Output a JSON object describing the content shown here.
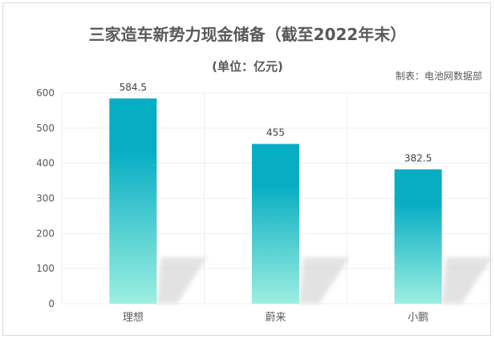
{
  "chart_data": {
    "type": "bar",
    "title": "三家造车新势力现金储备（截至2022年末）",
    "subtitle": "(单位：亿元)",
    "source_note": "制表：电池网数据部",
    "categories": [
      "理想",
      "蔚来",
      "小鹏"
    ],
    "values": [
      584.5,
      455,
      382.5
    ],
    "data_labels": [
      "584.5",
      "455",
      "382.5"
    ],
    "ylim": [
      0,
      600
    ],
    "yticks": [
      0,
      100,
      200,
      300,
      400,
      500,
      600
    ],
    "grid": true,
    "legend": "none",
    "colors": {
      "bar_top": "#06adc3",
      "bar_bottom": "#9defe0",
      "grid": "#efefef",
      "text": "#595959"
    }
  }
}
